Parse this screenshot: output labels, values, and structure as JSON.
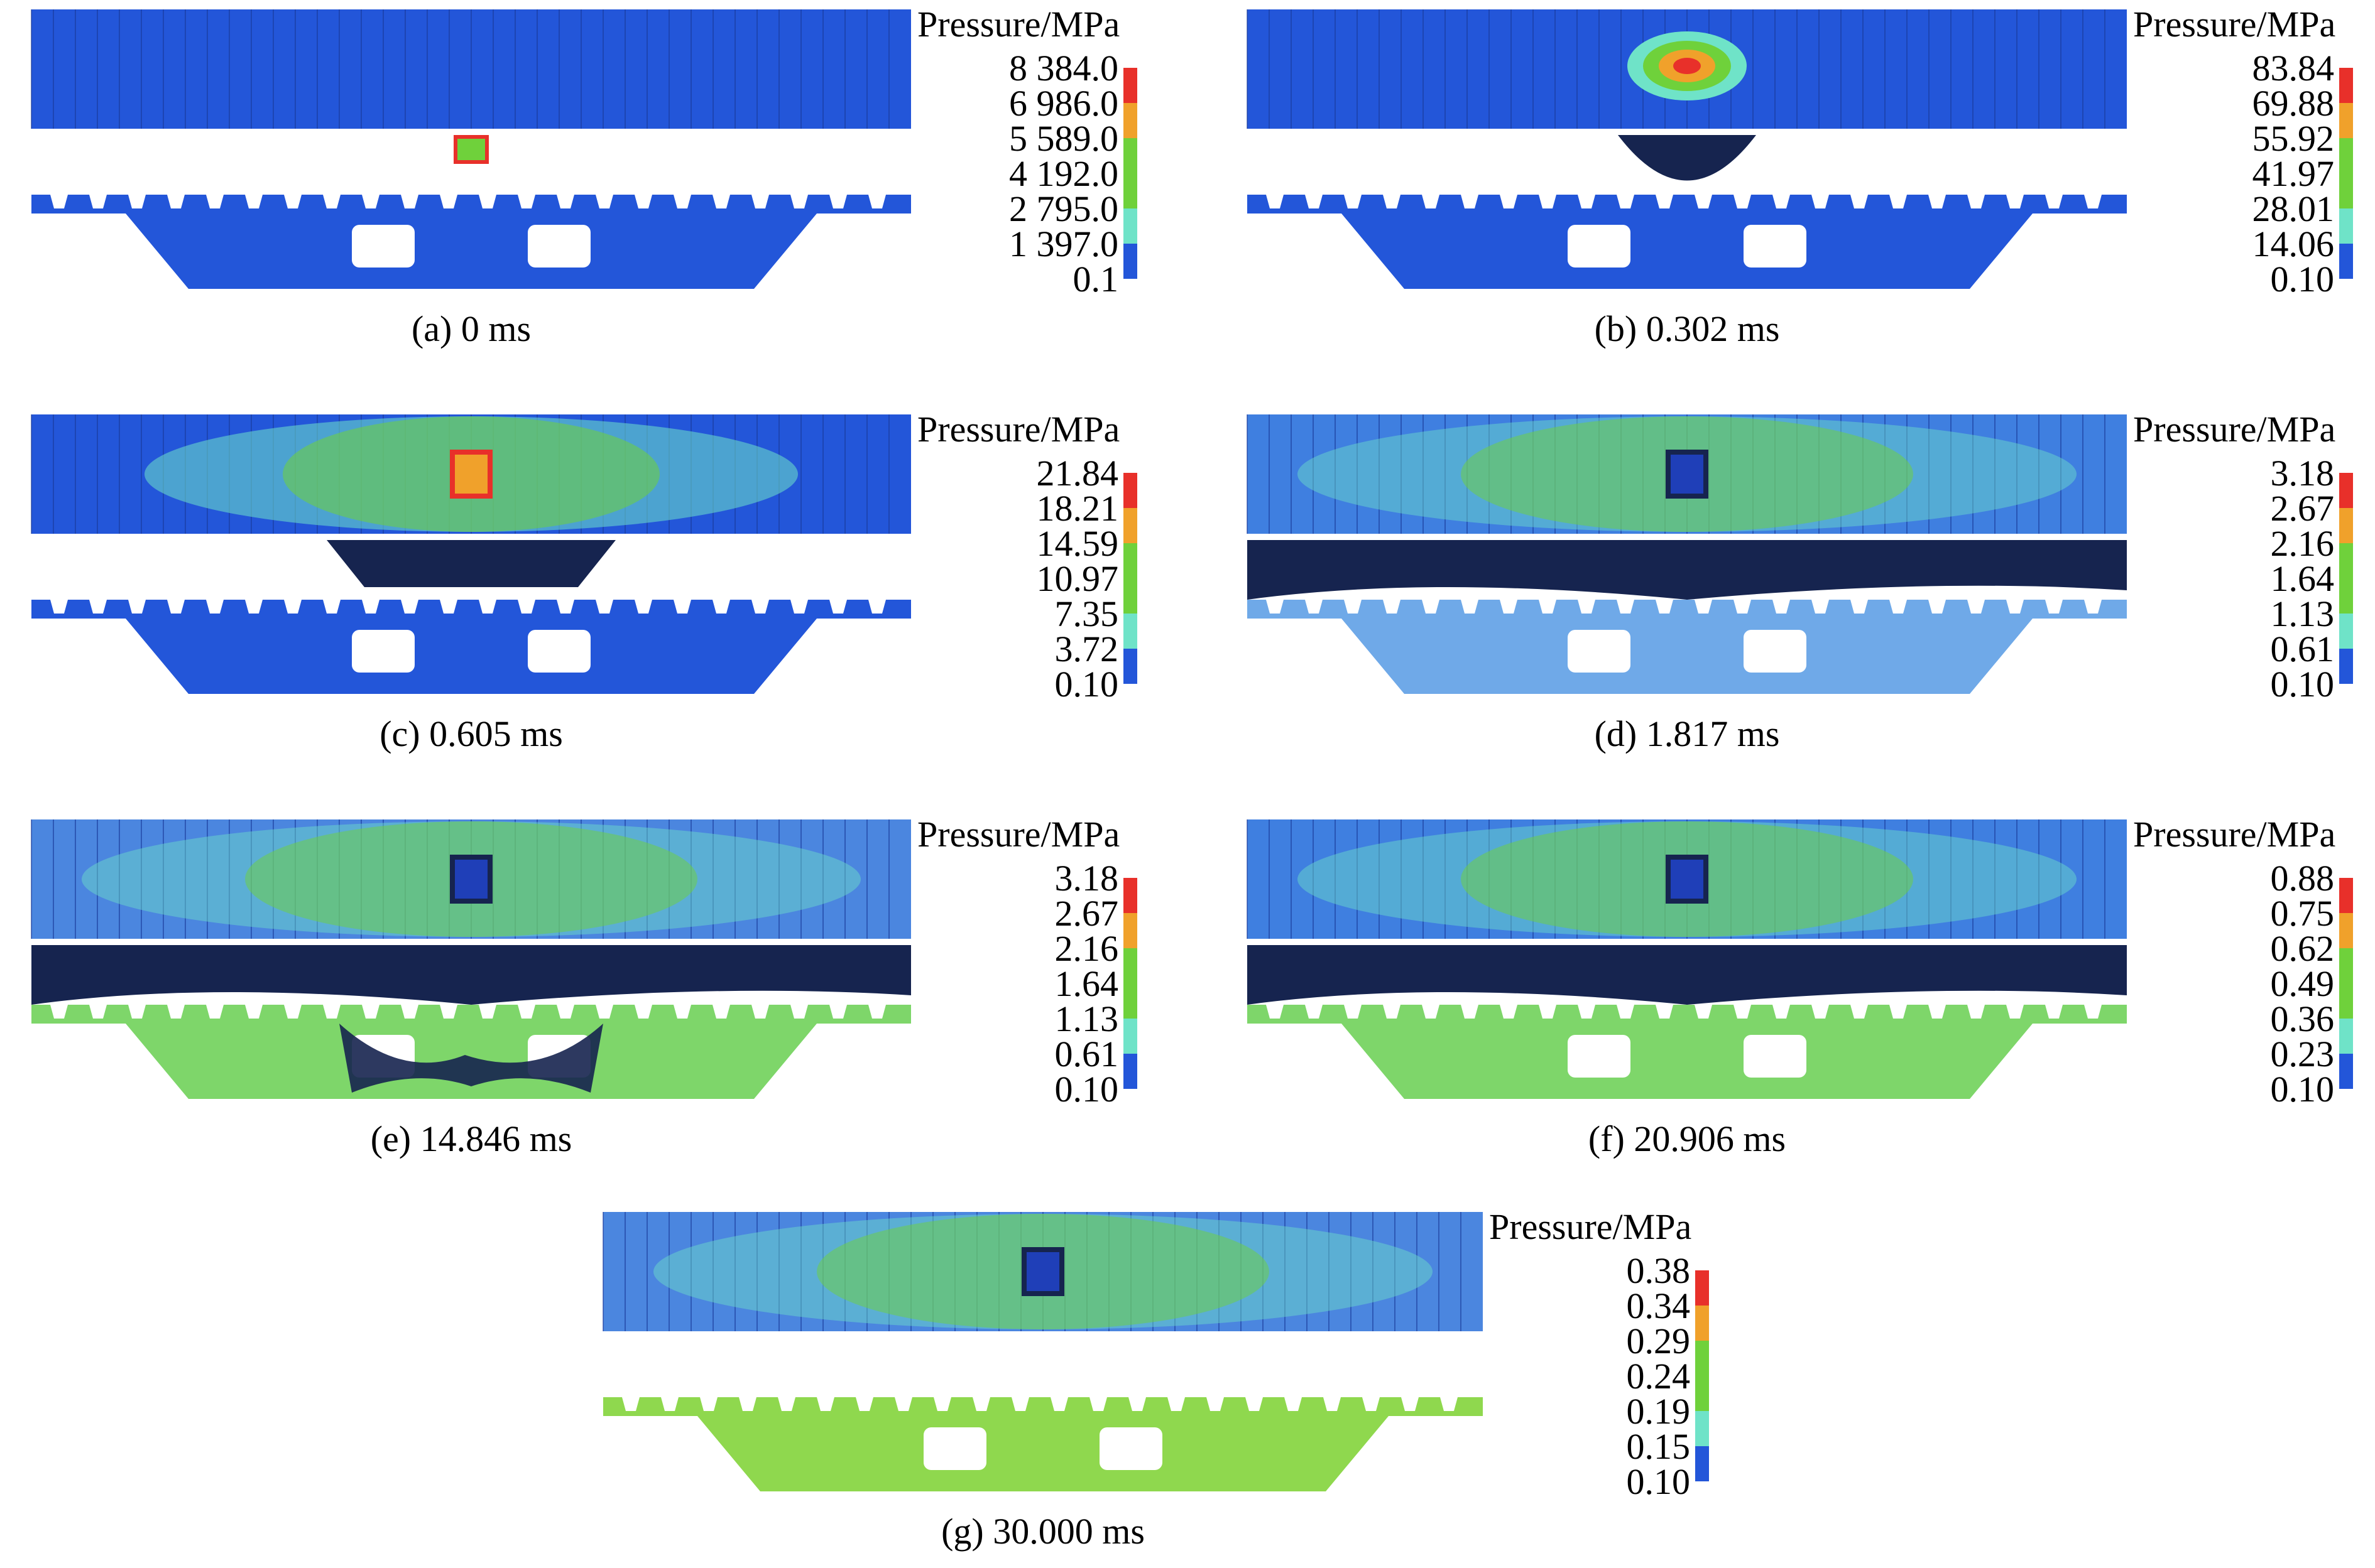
{
  "legend_title": "Pressure/MPa",
  "colors": {
    "red": "#e8302a",
    "orange": "#f0a12b",
    "green": "#6fd13b",
    "cyan": "#6fe3c8",
    "blue": "#2356d9",
    "deep": "#1f3fb8",
    "dark": "#16244f"
  },
  "panels": [
    {
      "caption": "(a) 0 ms",
      "ticks": [
        "8 384.0",
        "6 986.0",
        "5 589.0",
        "4 192.0",
        "2 795.0",
        "1 397.0",
        "0.1"
      ]
    },
    {
      "caption": "(b) 0.302 ms",
      "ticks": [
        "83.84",
        "69.88",
        "55.92",
        "41.97",
        "28.01",
        "14.06",
        "0.10"
      ]
    },
    {
      "caption": "(c) 0.605 ms",
      "ticks": [
        "21.84",
        "18.21",
        "14.59",
        "10.97",
        "7.35",
        "3.72",
        "0.10"
      ]
    },
    {
      "caption": "(d) 1.817 ms",
      "ticks": [
        "3.18",
        "2.67",
        "2.16",
        "1.64",
        "1.13",
        "0.61",
        "0.10"
      ]
    },
    {
      "caption": "(e) 14.846 ms",
      "ticks": [
        "3.18",
        "2.67",
        "2.16",
        "1.64",
        "1.13",
        "0.61",
        "0.10"
      ]
    },
    {
      "caption": "(f) 20.906 ms",
      "ticks": [
        "0.88",
        "0.75",
        "0.62",
        "0.49",
        "0.36",
        "0.23",
        "0.10"
      ]
    },
    {
      "caption": "(g) 30.000 ms",
      "ticks": [
        "0.38",
        "0.34",
        "0.29",
        "0.24",
        "0.19",
        "0.15",
        "0.10"
      ]
    }
  ]
}
